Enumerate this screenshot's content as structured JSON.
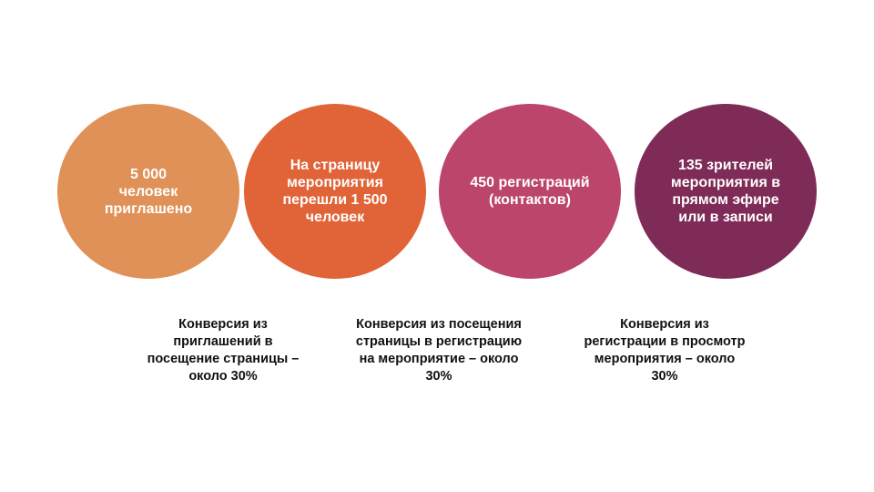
{
  "circles": [
    {
      "text": "5 000\nчеловек\nприглашено",
      "color": "#e09157"
    },
    {
      "text": "На страницу\nмероприятия\nперешли 1 500\nчеловек",
      "color": "#e06437"
    },
    {
      "text": "450 регистраций\n(контактов)",
      "color": "#bc466b"
    },
    {
      "text": "135 зрителей\nмероприятия в\nпрямом эфире\nили в записи",
      "color": "#7e2b57"
    }
  ],
  "conversions": [
    {
      "text": "Конверсия из\nприглашений в\nпосещение страницы –\nоколо 30%"
    },
    {
      "text": "Конверсия из посещения\nстраницы в регистрацию\nна мероприятие – около\n30%"
    },
    {
      "text": "Конверсия из\nрегистрации в просмотр\nмероприятия – около\n30%"
    }
  ]
}
